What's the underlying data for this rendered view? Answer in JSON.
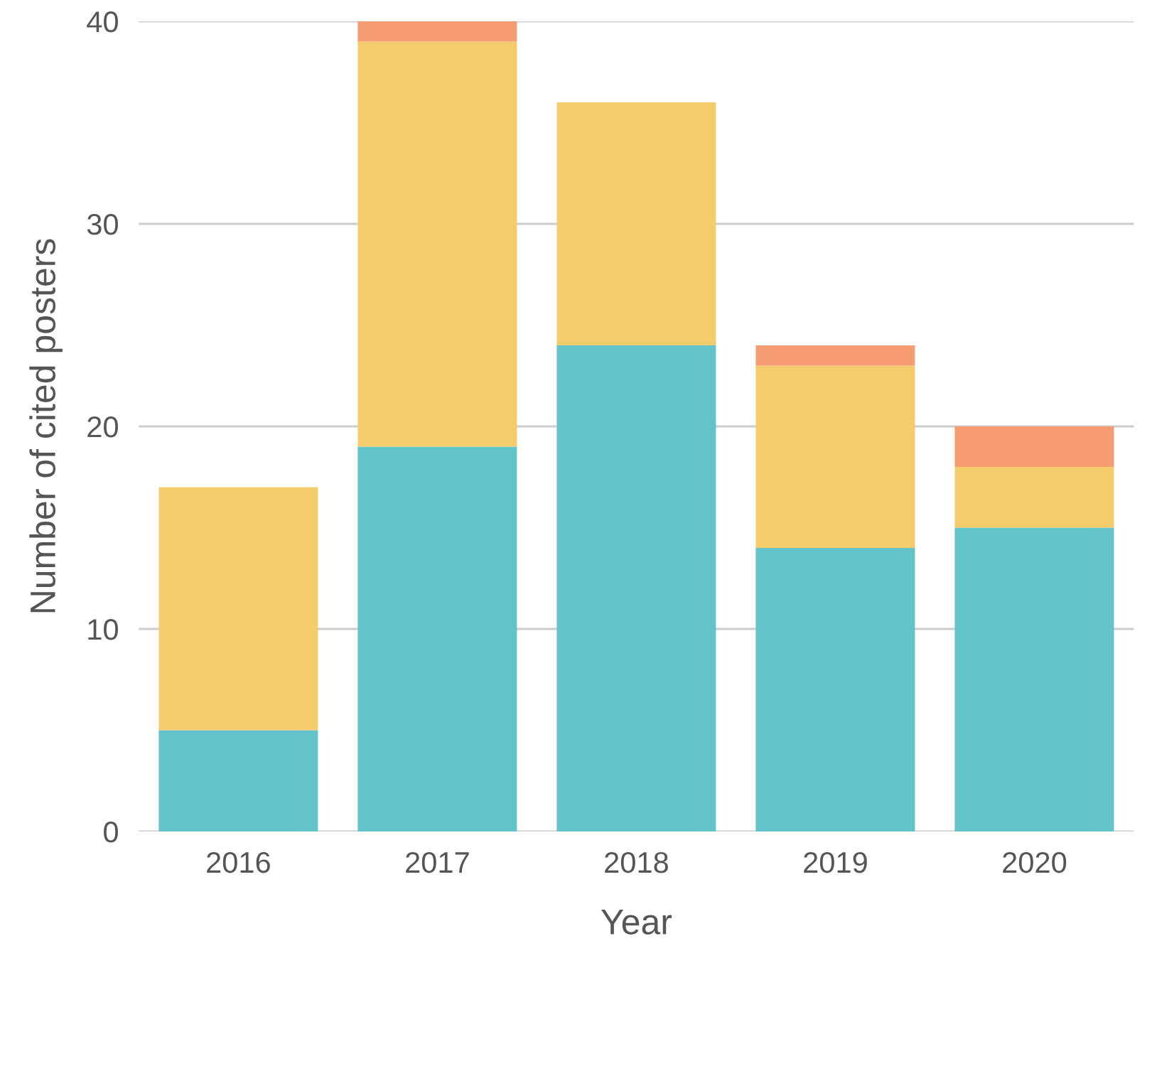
{
  "chart_data": {
    "type": "bar",
    "stacked": true,
    "xlabel": "Year",
    "ylabel": "Number of cited posters",
    "categories": [
      "2016",
      "2017",
      "2018",
      "2019",
      "2020"
    ],
    "series": [
      {
        "color": "#62c3ca",
        "values": [
          5,
          19,
          24,
          14,
          15
        ]
      },
      {
        "color": "#f4cc6c",
        "values": [
          12,
          20,
          12,
          9,
          3
        ]
      },
      {
        "color": "#f59c72",
        "values": [
          0,
          1,
          0,
          1,
          2
        ]
      }
    ],
    "ylim": [
      0,
      40
    ],
    "yticks": [
      0,
      10,
      20,
      30,
      40
    ],
    "grid": "y"
  }
}
